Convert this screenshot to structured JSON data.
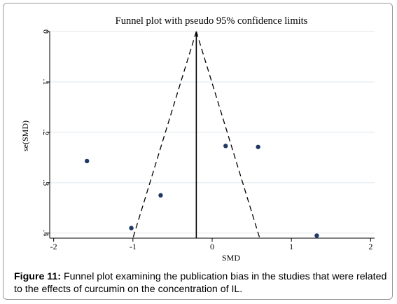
{
  "chart_data": {
    "type": "scatter",
    "title": "Funnel plot with pseudo 95% confidence limits",
    "xlabel": "SMD",
    "ylabel": "se(SMD)",
    "xlim": [
      -2.05,
      2.05
    ],
    "ylim": [
      0,
      0.41
    ],
    "y_reversed": true,
    "x_ticks": [
      -2,
      -1,
      0,
      1,
      2
    ],
    "x_tick_labels": [
      "-2",
      "-1",
      "0",
      "1",
      "2"
    ],
    "y_ticks": [
      0,
      0.1,
      0.2,
      0.3,
      0.4
    ],
    "y_tick_labels": [
      "0",
      ".1",
      ".2",
      ".3",
      ".4"
    ],
    "grid": "horizontal",
    "pooled_estimate": -0.2,
    "confidence_limits": {
      "apex": [
        -0.2,
        0
      ],
      "bottom_left": [
        -1.0,
        0.41
      ],
      "bottom_right": [
        0.6,
        0.41
      ]
    },
    "points": [
      {
        "x": -1.58,
        "y": 0.257
      },
      {
        "x": -1.02,
        "y": 0.39
      },
      {
        "x": -0.65,
        "y": 0.325
      },
      {
        "x": 0.17,
        "y": 0.227
      },
      {
        "x": 0.58,
        "y": 0.229
      },
      {
        "x": 1.32,
        "y": 0.405
      }
    ],
    "marker_color": "#1f3864"
  },
  "caption": {
    "label": "Figure 11:",
    "text": " Funnel plot examining the publication bias in the studies that were related to the effects of curcumin on the concentration of IL."
  }
}
